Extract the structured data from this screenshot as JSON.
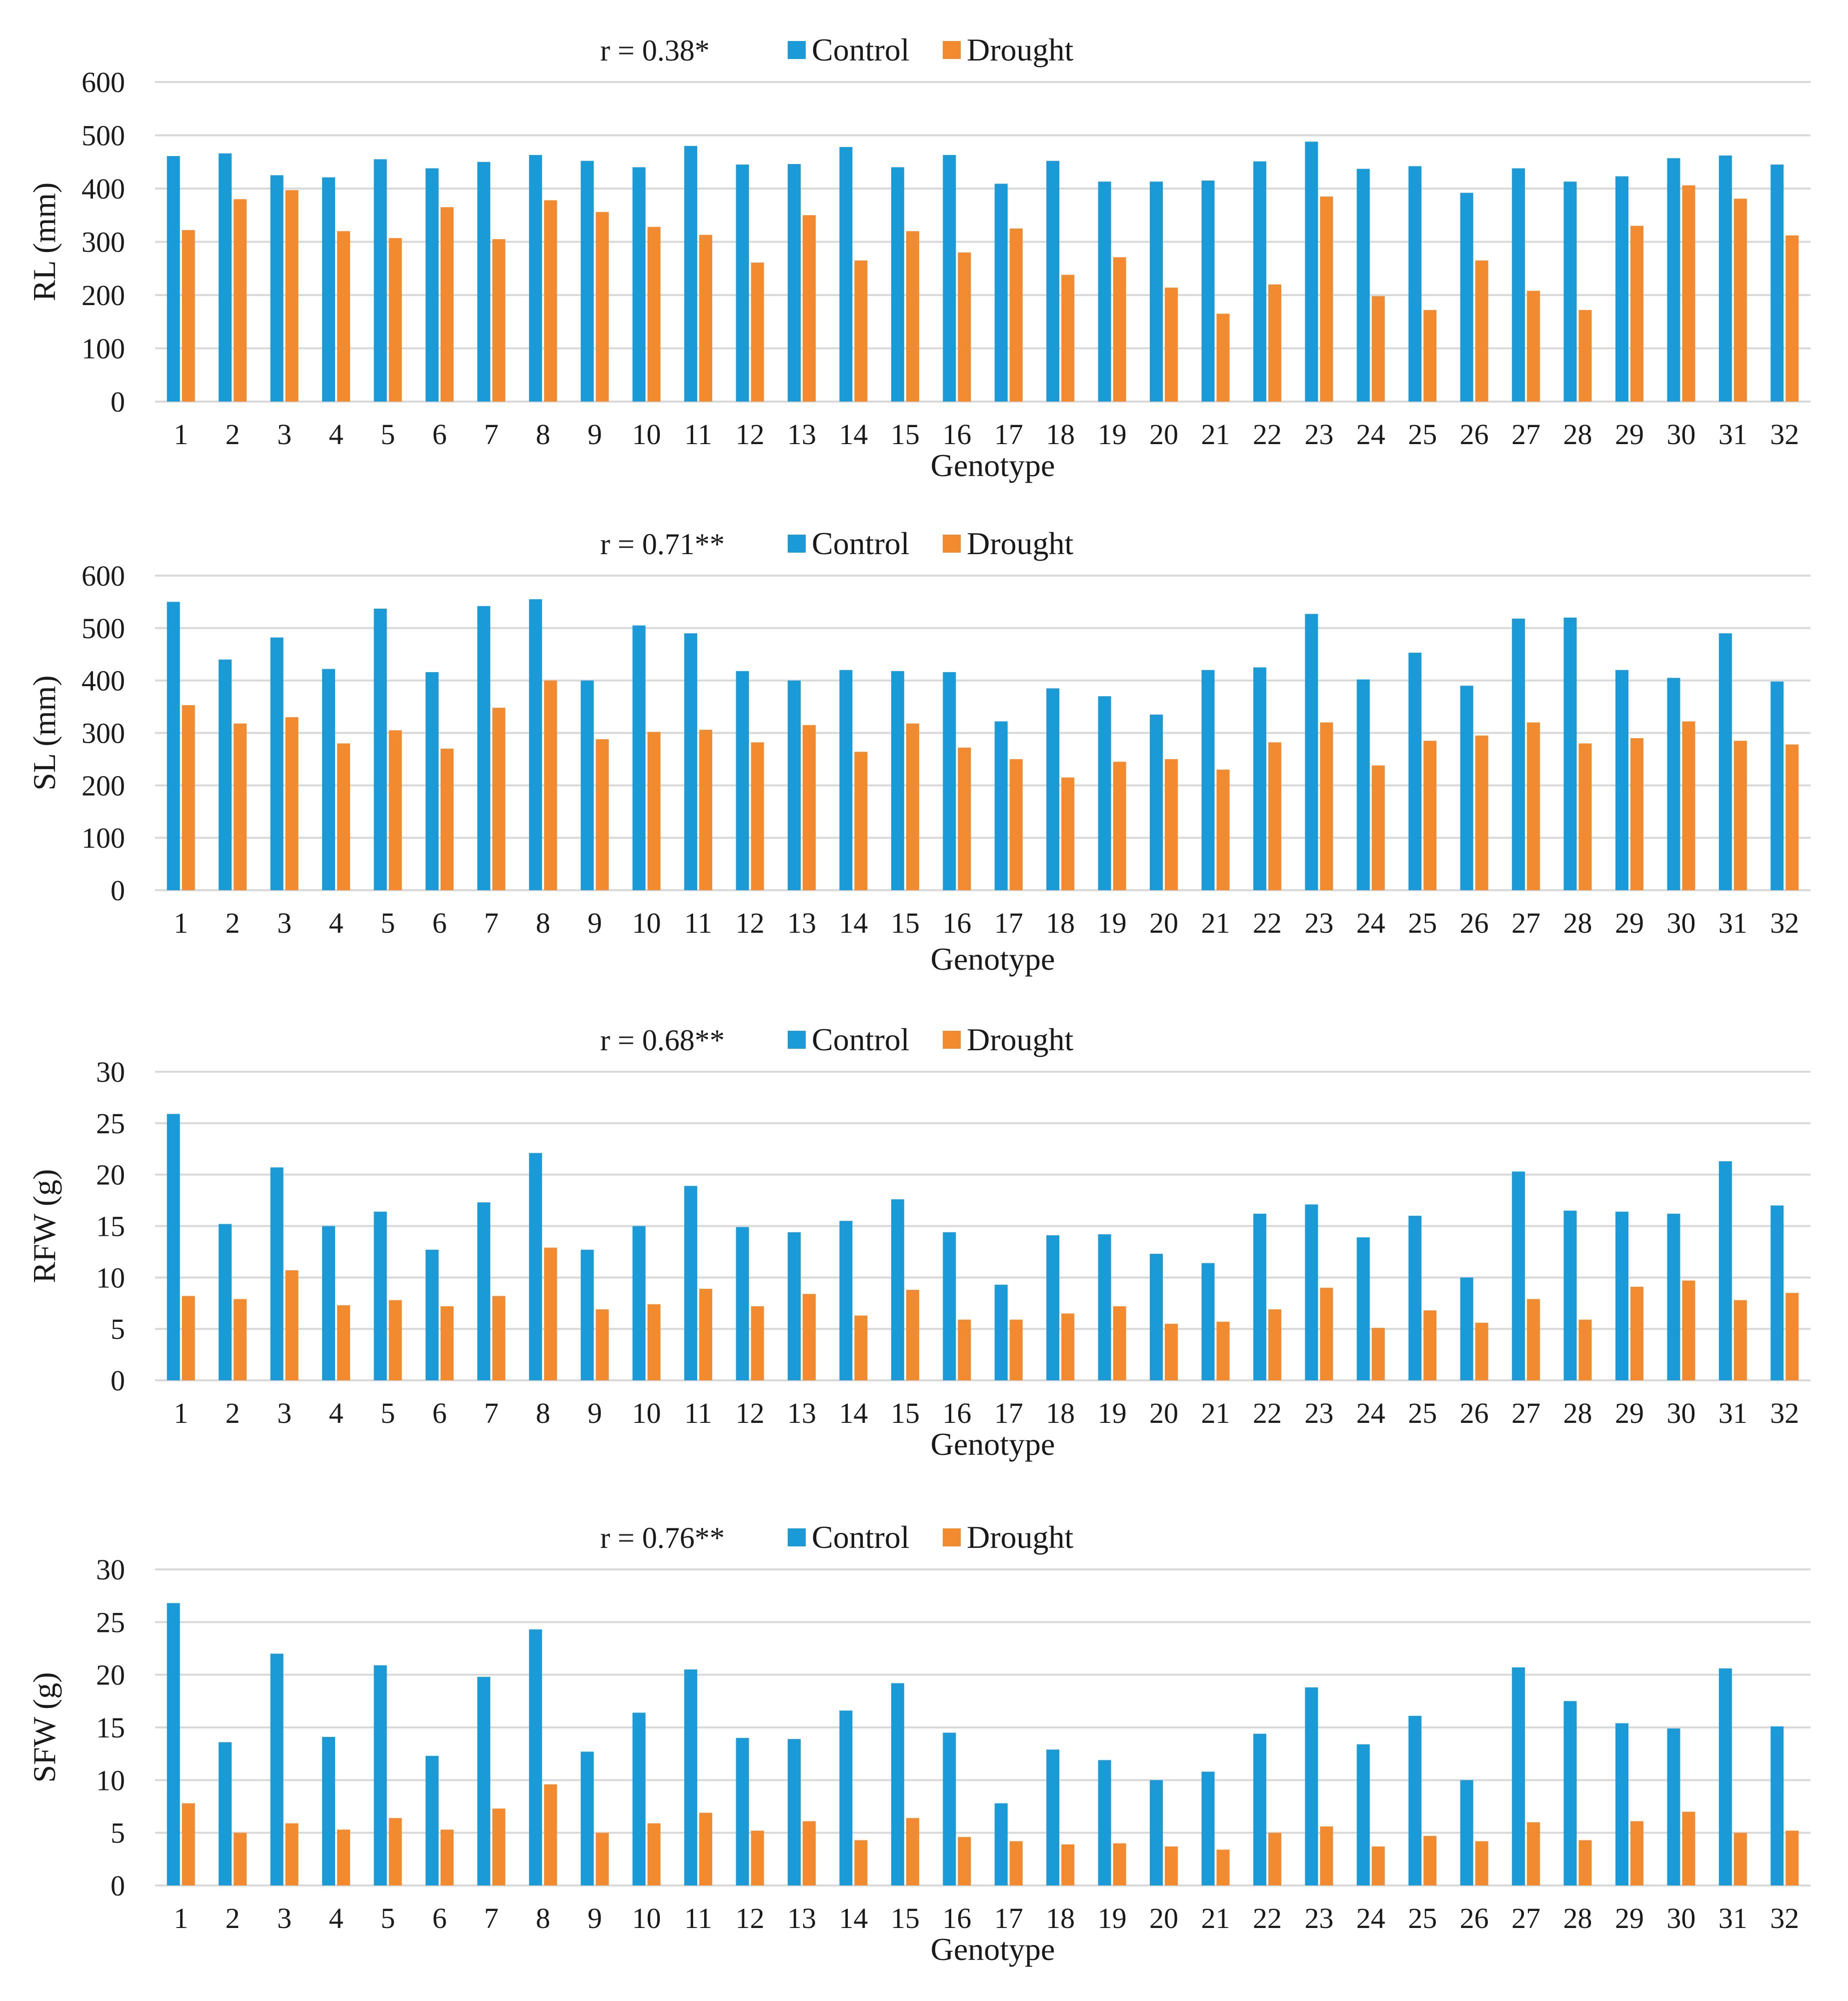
{
  "colors": {
    "control": "#1a9ad6",
    "drought": "#f28a30",
    "grid": "#d9d9d9",
    "text": "#1a1a1a"
  },
  "chart_data": [
    {
      "type": "bar",
      "annotation": "r = 0.38*",
      "ylabel": "RL (mm)",
      "xlabel": "Genotype",
      "ylim": [
        0,
        600
      ],
      "yticks": [
        0,
        100,
        200,
        300,
        400,
        500,
        600
      ],
      "grid": true,
      "legend_position": "top",
      "categories": [
        "1",
        "2",
        "3",
        "4",
        "5",
        "6",
        "7",
        "8",
        "9",
        "10",
        "11",
        "12",
        "13",
        "14",
        "15",
        "16",
        "17",
        "18",
        "19",
        "20",
        "21",
        "22",
        "23",
        "24",
        "25",
        "26",
        "27",
        "28",
        "29",
        "30",
        "31",
        "32"
      ],
      "series": [
        {
          "name": "Control",
          "values": [
            461,
            466,
            425,
            421,
            455,
            438,
            450,
            463,
            452,
            440,
            480,
            445,
            446,
            478,
            440,
            463,
            409,
            452,
            413,
            413,
            415,
            451,
            488,
            437,
            442,
            392,
            438,
            413,
            423,
            457,
            462,
            445
          ]
        },
        {
          "name": "Drought",
          "values": [
            322,
            380,
            397,
            320,
            307,
            365,
            305,
            378,
            356,
            328,
            313,
            261,
            350,
            265,
            320,
            280,
            325,
            238,
            271,
            214,
            165,
            220,
            385,
            198,
            172,
            265,
            208,
            172,
            330,
            406,
            381,
            312
          ]
        }
      ]
    },
    {
      "type": "bar",
      "annotation": "r = 0.71**",
      "ylabel": "SL (mm)",
      "xlabel": "Genotype",
      "ylim": [
        0,
        600
      ],
      "yticks": [
        0,
        100,
        200,
        300,
        400,
        500,
        600
      ],
      "grid": true,
      "legend_position": "top",
      "categories": [
        "1",
        "2",
        "3",
        "4",
        "5",
        "6",
        "7",
        "8",
        "9",
        "10",
        "11",
        "12",
        "13",
        "14",
        "15",
        "16",
        "17",
        "18",
        "19",
        "20",
        "21",
        "22",
        "23",
        "24",
        "25",
        "26",
        "27",
        "28",
        "29",
        "30",
        "31",
        "32"
      ],
      "series": [
        {
          "name": "Control",
          "values": [
            550,
            440,
            482,
            422,
            537,
            416,
            542,
            555,
            400,
            505,
            490,
            418,
            400,
            420,
            418,
            416,
            322,
            385,
            370,
            335,
            420,
            425,
            527,
            402,
            453,
            390,
            518,
            520,
            420,
            405,
            490,
            398
          ]
        },
        {
          "name": "Drought",
          "values": [
            353,
            318,
            330,
            280,
            305,
            270,
            348,
            400,
            288,
            302,
            306,
            282,
            315,
            264,
            318,
            272,
            250,
            215,
            245,
            250,
            230,
            282,
            320,
            238,
            285,
            295,
            320,
            280,
            290,
            322,
            285,
            278
          ]
        }
      ]
    },
    {
      "type": "bar",
      "annotation": "r = 0.68**",
      "ylabel": "RFW (g)",
      "xlabel": "Genotype",
      "ylim": [
        0,
        30
      ],
      "yticks": [
        0,
        5,
        10,
        15,
        20,
        25,
        30
      ],
      "grid": true,
      "legend_position": "top",
      "categories": [
        "1",
        "2",
        "3",
        "4",
        "5",
        "6",
        "7",
        "8",
        "9",
        "10",
        "11",
        "12",
        "13",
        "14",
        "15",
        "16",
        "17",
        "18",
        "19",
        "20",
        "21",
        "22",
        "23",
        "24",
        "25",
        "26",
        "27",
        "28",
        "29",
        "30",
        "31",
        "32"
      ],
      "series": [
        {
          "name": "Control",
          "values": [
            25.9,
            15.2,
            20.7,
            15.0,
            16.4,
            12.7,
            17.3,
            22.1,
            12.7,
            15.0,
            18.9,
            14.9,
            14.4,
            15.5,
            17.6,
            14.4,
            9.3,
            14.1,
            14.2,
            12.3,
            11.4,
            16.2,
            17.1,
            13.9,
            16.0,
            10.0,
            20.3,
            16.5,
            16.4,
            16.2,
            21.3,
            17.0
          ]
        },
        {
          "name": "Drought",
          "values": [
            8.2,
            7.9,
            10.7,
            7.3,
            7.8,
            7.2,
            8.2,
            12.9,
            6.9,
            7.4,
            8.9,
            7.2,
            8.4,
            6.3,
            8.8,
            5.9,
            5.9,
            6.5,
            7.2,
            5.5,
            5.7,
            6.9,
            9.0,
            5.1,
            6.8,
            5.6,
            7.9,
            5.9,
            9.1,
            9.7,
            7.8,
            8.5
          ]
        }
      ]
    },
    {
      "type": "bar",
      "annotation": "r = 0.76**",
      "ylabel": "SFW (g)",
      "xlabel": "Genotype",
      "ylim": [
        0,
        30
      ],
      "yticks": [
        0,
        5,
        10,
        15,
        20,
        25,
        30
      ],
      "grid": true,
      "legend_position": "top",
      "categories": [
        "1",
        "2",
        "3",
        "4",
        "5",
        "6",
        "7",
        "8",
        "9",
        "10",
        "11",
        "12",
        "13",
        "14",
        "15",
        "16",
        "17",
        "18",
        "19",
        "20",
        "21",
        "22",
        "23",
        "24",
        "25",
        "26",
        "27",
        "28",
        "29",
        "30",
        "31",
        "32"
      ],
      "series": [
        {
          "name": "Control",
          "values": [
            26.8,
            13.6,
            22.0,
            14.1,
            20.9,
            12.3,
            19.8,
            24.3,
            12.7,
            16.4,
            20.5,
            14.0,
            13.9,
            16.6,
            19.2,
            14.5,
            7.8,
            12.9,
            11.9,
            10.0,
            10.8,
            14.4,
            18.8,
            13.4,
            16.1,
            10.0,
            20.7,
            17.5,
            15.4,
            14.9,
            20.6,
            15.1
          ]
        },
        {
          "name": "Drought",
          "values": [
            7.8,
            5.0,
            5.9,
            5.3,
            6.4,
            5.3,
            7.3,
            9.6,
            5.0,
            5.9,
            6.9,
            5.2,
            6.1,
            4.3,
            6.4,
            4.6,
            4.2,
            3.9,
            4.0,
            3.7,
            3.4,
            5.0,
            5.6,
            3.7,
            4.7,
            4.2,
            6.0,
            4.3,
            6.1,
            7.0,
            5.0,
            5.2
          ]
        }
      ]
    }
  ]
}
